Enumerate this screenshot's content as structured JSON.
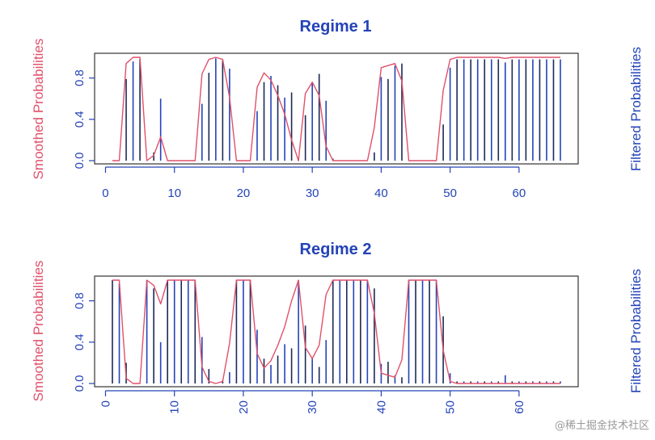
{
  "colors": {
    "axis": "#2443b8",
    "frame": "#333333",
    "smoothed": "#e0516b",
    "filtered_dark": "#1b2a55",
    "filtered_blue": "#2443b8"
  },
  "watermark": "@稀土掘金技术社区",
  "chart_data": [
    {
      "type": "bar",
      "title": "Regime 1",
      "ylabel": "Smoothed Probabilities",
      "ylabel_right": "Filtered Probabilities",
      "xlim": [
        1,
        66
      ],
      "ylim": [
        0,
        1
      ],
      "xticks": [
        0,
        10,
        20,
        30,
        40,
        50,
        60
      ],
      "xtick_labels": [
        "0",
        "10",
        "20",
        "30",
        "40",
        "50",
        "60"
      ],
      "yticks": [
        0,
        0.4,
        0.8
      ],
      "ytick_labels": [
        "0.0",
        "0.4",
        "0.8"
      ],
      "x_label_orientation": "horizontal",
      "series": [
        {
          "name": "Smoothed Probabilities",
          "kind": "line",
          "x": [
            1,
            2,
            3,
            4,
            5,
            6,
            7,
            8,
            9,
            10,
            11,
            12,
            13,
            14,
            15,
            16,
            17,
            18,
            19,
            20,
            21,
            22,
            23,
            24,
            25,
            26,
            27,
            28,
            29,
            30,
            31,
            32,
            33,
            34,
            35,
            36,
            37,
            38,
            39,
            40,
            41,
            42,
            43,
            44,
            45,
            46,
            47,
            48,
            49,
            50,
            51,
            52,
            53,
            54,
            55,
            56,
            57,
            58,
            59,
            60,
            61,
            62,
            63,
            64,
            65,
            66
          ],
          "values": [
            0,
            0,
            0.94,
            1.0,
            1.0,
            0,
            0.05,
            0.23,
            0,
            0,
            0,
            0,
            0,
            0.84,
            0.98,
            1.0,
            0.98,
            0.61,
            0,
            0,
            0,
            0.71,
            0.85,
            0.78,
            0.63,
            0.45,
            0.2,
            0,
            0.65,
            0.76,
            0.63,
            0.14,
            0,
            0,
            0,
            0,
            0,
            0,
            0.32,
            0.9,
            0.92,
            0.94,
            0.77,
            0,
            0,
            0,
            0,
            0,
            0.68,
            0.98,
            1.0,
            1.0,
            1.0,
            1.0,
            1.0,
            1.0,
            1.0,
            0.99,
            1.0,
            1.0,
            1.0,
            1.0,
            1.0,
            1.0,
            1.0,
            1.0
          ]
        },
        {
          "name": "Filtered Probabilities",
          "kind": "spikes",
          "x": [
            1,
            2,
            3,
            4,
            5,
            6,
            7,
            8,
            9,
            10,
            11,
            12,
            13,
            14,
            15,
            16,
            17,
            18,
            19,
            20,
            21,
            22,
            23,
            24,
            25,
            26,
            27,
            28,
            29,
            30,
            31,
            32,
            33,
            34,
            35,
            36,
            37,
            38,
            39,
            40,
            41,
            42,
            43,
            44,
            45,
            46,
            47,
            48,
            49,
            50,
            51,
            52,
            53,
            54,
            55,
            56,
            57,
            58,
            59,
            60,
            61,
            62,
            63,
            64,
            65,
            66
          ],
          "values": [
            0,
            0,
            0.79,
            0.96,
            0.98,
            0,
            0.08,
            0.6,
            0,
            0,
            0,
            0,
            0,
            0.55,
            0.85,
            0.99,
            0.97,
            0.89,
            0,
            0,
            0,
            0.48,
            0.76,
            0.82,
            0.73,
            0.61,
            0.66,
            0.02,
            0.44,
            0.75,
            0.84,
            0.58,
            0.02,
            0,
            0,
            0,
            0,
            0,
            0.08,
            0.81,
            0.79,
            0.92,
            0.94,
            0,
            0,
            0,
            0,
            0,
            0.35,
            0.9,
            0.98,
            0.98,
            0.98,
            0.98,
            0.98,
            0.98,
            0.98,
            0.95,
            0.98,
            0.98,
            0.98,
            0.98,
            0.98,
            0.98,
            0.98,
            0.98
          ]
        }
      ]
    },
    {
      "type": "bar",
      "title": "Regime 2",
      "ylabel": "Smoothed Probabilities",
      "ylabel_right": "Filtered Probabilities",
      "xlim": [
        1,
        66
      ],
      "ylim": [
        0,
        1
      ],
      "xticks": [
        0,
        10,
        20,
        30,
        40,
        50,
        60
      ],
      "xtick_labels": [
        "0",
        "10",
        "20",
        "30",
        "40",
        "50",
        "60"
      ],
      "yticks": [
        0,
        0.4,
        0.8
      ],
      "ytick_labels": [
        "0.0",
        "0.4",
        "0.8"
      ],
      "x_label_orientation": "vertical",
      "series": [
        {
          "name": "Smoothed Probabilities",
          "kind": "line",
          "x": [
            1,
            2,
            3,
            4,
            5,
            6,
            7,
            8,
            9,
            10,
            11,
            12,
            13,
            14,
            15,
            16,
            17,
            18,
            19,
            20,
            21,
            22,
            23,
            24,
            25,
            26,
            27,
            28,
            29,
            30,
            31,
            32,
            33,
            34,
            35,
            36,
            37,
            38,
            39,
            40,
            41,
            42,
            43,
            44,
            45,
            46,
            47,
            48,
            49,
            50,
            51,
            52,
            53,
            54,
            55,
            56,
            57,
            58,
            59,
            60,
            61,
            62,
            63,
            64,
            65,
            66
          ],
          "values": [
            1.0,
            1.0,
            0.05,
            0,
            0,
            1.0,
            0.95,
            0.77,
            1.0,
            1.0,
            1.0,
            1.0,
            1.0,
            0.16,
            0.02,
            0,
            0.02,
            0.39,
            1.0,
            1.0,
            1.0,
            0.29,
            0.15,
            0.22,
            0.37,
            0.55,
            0.8,
            1.0,
            0.35,
            0.24,
            0.37,
            0.86,
            1.0,
            1.0,
            1.0,
            1.0,
            1.0,
            1.0,
            0.68,
            0.1,
            0.08,
            0.06,
            0.23,
            1.0,
            1.0,
            1.0,
            1.0,
            1.0,
            0.32,
            0.02,
            0,
            0,
            0,
            0,
            0,
            0,
            0,
            0,
            0,
            0,
            0,
            0,
            0,
            0,
            0,
            0
          ]
        },
        {
          "name": "Filtered Probabilities",
          "kind": "spikes",
          "x": [
            1,
            2,
            3,
            4,
            5,
            6,
            7,
            8,
            9,
            10,
            11,
            12,
            13,
            14,
            15,
            16,
            17,
            18,
            19,
            20,
            21,
            22,
            23,
            24,
            25,
            26,
            27,
            28,
            29,
            30,
            31,
            32,
            33,
            34,
            35,
            36,
            37,
            38,
            39,
            40,
            41,
            42,
            43,
            44,
            45,
            46,
            47,
            48,
            49,
            50,
            51,
            52,
            53,
            54,
            55,
            56,
            57,
            58,
            59,
            60,
            61,
            62,
            63,
            64,
            65,
            66
          ],
          "values": [
            1.0,
            0.97,
            0.2,
            0,
            0,
            1.0,
            0.92,
            0.4,
            1.0,
            1.0,
            1.0,
            1.0,
            1.0,
            0.45,
            0.14,
            0,
            0.03,
            0.11,
            1.0,
            1.0,
            1.0,
            0.52,
            0.24,
            0.18,
            0.27,
            0.38,
            0.34,
            1.0,
            0.56,
            0.25,
            0.16,
            0.42,
            1.0,
            1.0,
            1.0,
            1.0,
            1.0,
            1.0,
            0.92,
            0.19,
            0.21,
            0.08,
            0.06,
            1.0,
            1.0,
            1.0,
            1.0,
            1.0,
            0.65,
            0.1,
            0.02,
            0.02,
            0.02,
            0.02,
            0.02,
            0.02,
            0.02,
            0.08,
            0.02,
            0.02,
            0.02,
            0.02,
            0.02,
            0.02,
            0.02,
            0.02
          ]
        }
      ]
    }
  ]
}
